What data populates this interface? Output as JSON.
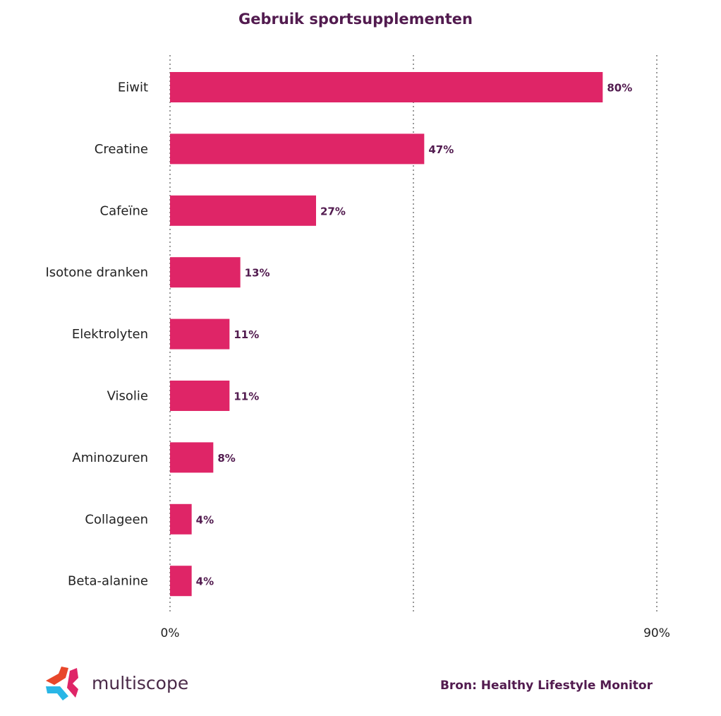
{
  "chart_data": {
    "type": "bar",
    "orientation": "horizontal",
    "title": "Gebruik sportsupplementen",
    "categories": [
      "Eiwit",
      "Creatine",
      "Cafeïne",
      "Isotone dranken",
      "Elektrolyten",
      "Visolie",
      "Aminozuren",
      "Collageen",
      "Beta-alanine"
    ],
    "values": [
      80,
      47,
      27,
      13,
      11,
      11,
      8,
      4,
      4
    ],
    "data_labels": [
      "80%",
      "47%",
      "27%",
      "13%",
      "11%",
      "11%",
      "8%",
      "4%",
      "4%"
    ],
    "xlim": [
      0,
      90
    ],
    "x_ticks": [
      {
        "value": 0,
        "label": "0%"
      },
      {
        "value": 90,
        "label": "90%"
      }
    ],
    "gridlines": [
      0,
      45,
      90
    ],
    "grid": "vertical dotted",
    "xlabel": "",
    "ylabel": "",
    "legend": "none",
    "colors": {
      "bar": "#df2567",
      "label": "#521b4f",
      "grid": "#999999"
    }
  },
  "footer": {
    "logo_text": "multiscope",
    "source": "Bron: Healthy Lifestyle Monitor"
  }
}
